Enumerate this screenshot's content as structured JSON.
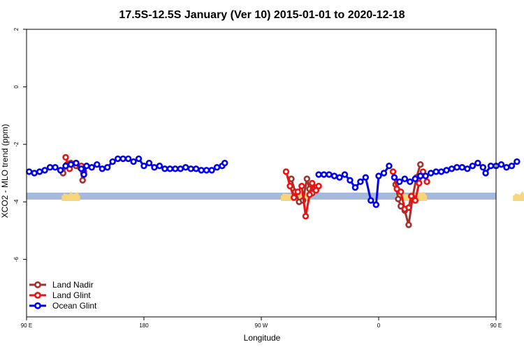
{
  "chart_data": {
    "type": "line",
    "title": "17.5S-12.5S January (Ver 10)   2015-01-01 to 2020-12-18",
    "xlabel": "Longitude",
    "ylabel": "XCO2 - MLO trend (ppm)",
    "xlim": [
      90,
      450
    ],
    "ylim": [
      -8,
      2
    ],
    "x_ticks": [
      {
        "value": 90,
        "label": "90 E"
      },
      {
        "value": 180,
        "label": "180"
      },
      {
        "value": 270,
        "label": "90 W"
      },
      {
        "value": 360,
        "label": "0"
      },
      {
        "value": 450,
        "label": "90 E"
      },
      {
        "value": 540,
        "label": "180"
      }
    ],
    "y_ticks": [
      {
        "value": 2,
        "label": "2"
      },
      {
        "value": 0,
        "label": "0"
      },
      {
        "value": -2,
        "label": "-2"
      },
      {
        "value": -4,
        "label": "-4"
      },
      {
        "value": -6,
        "label": "-6"
      }
    ],
    "legend_position": "bottom-left",
    "grid": false,
    "land_band": {
      "y": -3.8,
      "color": "#a4b9dc",
      "land_color": "#f7d57a",
      "land_ranges": [
        [
          117,
          131
        ],
        [
          285,
          307
        ],
        [
          373,
          397
        ],
        [
          463,
          477
        ],
        [
          477,
          490
        ]
      ]
    },
    "series": [
      {
        "name": "Land Nadir",
        "color": "#a0322d",
        "segments": [
          [
            [
              118,
              -3.0
            ],
            [
              121,
              -2.7
            ],
            [
              124,
              -2.65
            ],
            [
              128,
              -2.75
            ],
            [
              131,
              -2.8
            ],
            [
              133,
              -3.25
            ]
          ],
          [
            [
              293,
              -3.2
            ],
            [
              296,
              -3.65
            ],
            [
              299,
              -4.0
            ],
            [
              302,
              -3.95
            ],
            [
              305,
              -3.2
            ],
            [
              307,
              -3.55
            ],
            [
              309,
              -3.7
            ],
            [
              311,
              -3.5
            ]
          ],
          [
            [
              373,
              -3.4
            ],
            [
              375,
              -3.9
            ],
            [
              377,
              -4.15
            ],
            [
              380,
              -4.3
            ],
            [
              383,
              -4.8
            ],
            [
              386,
              -3.85
            ],
            [
              389,
              -3.15
            ],
            [
              392,
              -2.7
            ]
          ]
        ]
      },
      {
        "name": "Land Glint",
        "color": "#ee1111",
        "segments": [
          [
            [
              120,
              -2.45
            ],
            [
              123,
              -2.85
            ],
            [
              128,
              -2.65
            ],
            [
              132,
              -2.75
            ],
            [
              134,
              -2.95
            ]
          ],
          [
            [
              289,
              -2.95
            ],
            [
              292,
              -3.45
            ],
            [
              295,
              -3.85
            ],
            [
              298,
              -3.65
            ],
            [
              301,
              -3.45
            ],
            [
              304,
              -4.5
            ],
            [
              307,
              -3.75
            ],
            [
              309,
              -3.35
            ],
            [
              312,
              -3.6
            ],
            [
              314,
              -3.45
            ]
          ],
          [
            [
              371,
              -2.95
            ],
            [
              374,
              -3.55
            ],
            [
              377,
              -3.65
            ],
            [
              380,
              -4.25
            ],
            [
              383,
              -4.2
            ],
            [
              385,
              -3.8
            ],
            [
              388,
              -3.95
            ],
            [
              391,
              -3.35
            ],
            [
              394,
              -2.95
            ],
            [
              397,
              -3.3
            ]
          ]
        ]
      },
      {
        "name": "Ocean Glint",
        "color": "#0000ee",
        "segments": [
          [
            [
              92,
              -2.95
            ],
            [
              96,
              -3.0
            ],
            [
              100,
              -2.95
            ],
            [
              104,
              -2.9
            ],
            [
              108,
              -2.8
            ],
            [
              112,
              -2.8
            ],
            [
              116,
              -2.9
            ],
            [
              120,
              -2.75
            ],
            [
              124,
              -2.7
            ],
            [
              128,
              -2.65
            ],
            [
              132,
              -2.85
            ],
            [
              134,
              -3.05
            ],
            [
              136,
              -2.75
            ],
            [
              140,
              -2.8
            ],
            [
              144,
              -2.7
            ],
            [
              148,
              -2.85
            ],
            [
              152,
              -2.8
            ],
            [
              156,
              -2.6
            ],
            [
              160,
              -2.5
            ],
            [
              164,
              -2.5
            ],
            [
              168,
              -2.5
            ],
            [
              172,
              -2.6
            ],
            [
              176,
              -2.5
            ],
            [
              180,
              -2.75
            ],
            [
              184,
              -2.65
            ],
            [
              188,
              -2.8
            ],
            [
              192,
              -2.75
            ],
            [
              196,
              -2.85
            ],
            [
              200,
              -2.85
            ],
            [
              204,
              -2.85
            ],
            [
              208,
              -2.85
            ],
            [
              212,
              -2.8
            ],
            [
              216,
              -2.85
            ],
            [
              220,
              -2.85
            ],
            [
              224,
              -2.9
            ],
            [
              228,
              -2.9
            ],
            [
              232,
              -2.9
            ],
            [
              236,
              -2.8
            ],
            [
              240,
              -2.75
            ],
            [
              242,
              -2.65
            ]
          ],
          [
            [
              314,
              -3.05
            ],
            [
              318,
              -3.05
            ],
            [
              322,
              -3.05
            ],
            [
              326,
              -3.1
            ],
            [
              330,
              -3.15
            ],
            [
              334,
              -3.05
            ],
            [
              338,
              -3.25
            ],
            [
              342,
              -3.5
            ],
            [
              346,
              -3.3
            ],
            [
              350,
              -3.15
            ],
            [
              354,
              -3.95
            ],
            [
              358,
              -4.1
            ],
            [
              360,
              -3.1
            ],
            [
              364,
              -3.0
            ],
            [
              368,
              -2.75
            ]
          ],
          [
            [
              372,
              -3.15
            ],
            [
              376,
              -3.3
            ],
            [
              380,
              -3.2
            ],
            [
              384,
              -3.3
            ],
            [
              388,
              -3.2
            ],
            [
              392,
              -3.1
            ],
            [
              396,
              -3.1
            ],
            [
              400,
              -3.0
            ],
            [
              404,
              -2.95
            ],
            [
              408,
              -2.95
            ],
            [
              412,
              -2.9
            ],
            [
              416,
              -2.85
            ],
            [
              420,
              -2.8
            ],
            [
              424,
              -2.8
            ],
            [
              428,
              -2.85
            ],
            [
              432,
              -2.75
            ],
            [
              436,
              -2.65
            ],
            [
              440,
              -2.8
            ],
            [
              442,
              -3.0
            ],
            [
              446,
              -2.75
            ],
            [
              450,
              -2.75
            ],
            [
              454,
              -2.7
            ],
            [
              458,
              -2.8
            ],
            [
              462,
              -2.75
            ],
            [
              466,
              -2.6
            ]
          ]
        ]
      }
    ]
  }
}
